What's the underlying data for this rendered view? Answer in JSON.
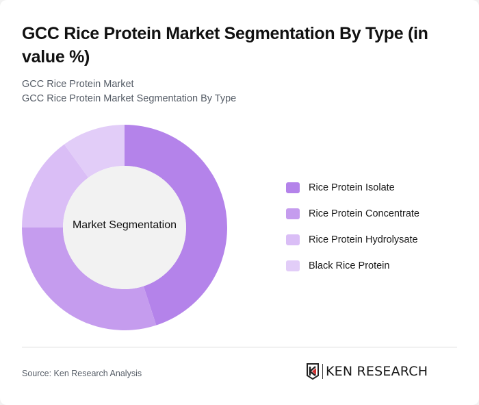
{
  "header": {
    "title": "GCC Rice Protein Market Segmentation By Type (in value %)",
    "subtitle_line1": "GCC Rice Protein Market",
    "subtitle_line2": "GCC Rice Protein Market Segmentation By Type"
  },
  "chart": {
    "center_label": "Market Segmentation"
  },
  "legend": {
    "items": [
      {
        "label": "Rice Protein Isolate",
        "color": "#b483ea"
      },
      {
        "label": "Rice Protein Concentrate",
        "color": "#c59cee"
      },
      {
        "label": "Rice Protein Hydrolysate",
        "color": "#dabef6"
      },
      {
        "label": "Black Rice Protein",
        "color": "#e2cdf8"
      }
    ]
  },
  "footer": {
    "source": "Source: Ken Research Analysis",
    "logo_text": "KEN RESEARCH",
    "logo_icon": "ken-research-k-icon"
  },
  "chart_data": {
    "type": "pie",
    "title": "GCC Rice Protein Market Segmentation By Type (in value %)",
    "subtitle": "GCC Rice Protein Market Segmentation By Type",
    "center_label": "Market Segmentation",
    "donut": true,
    "categories": [
      "Rice Protein Isolate",
      "Rice Protein Concentrate",
      "Rice Protein Hydrolysate",
      "Black Rice Protein"
    ],
    "values": [
      45,
      30,
      15,
      10
    ],
    "colors": [
      "#b483ea",
      "#c59cee",
      "#dabef6",
      "#e2cdf8"
    ],
    "legend_position": "right",
    "start_angle": "12 o'clock, clockwise"
  }
}
